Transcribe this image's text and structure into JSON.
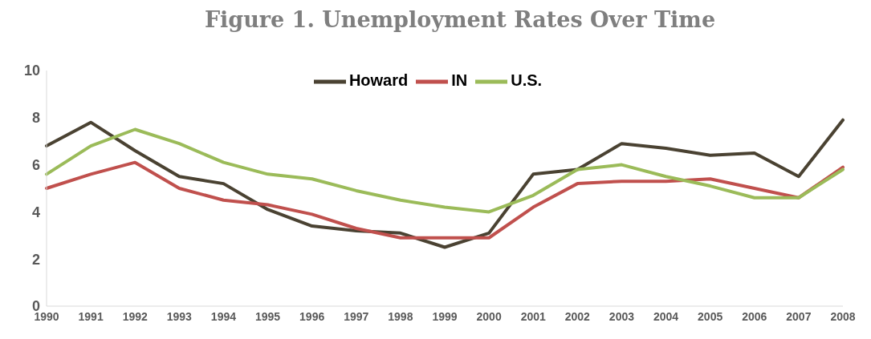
{
  "chart_data": {
    "type": "line",
    "title": "Figure 1. Unemployment Rates Over Time",
    "categories": [
      "1990",
      "1991",
      "1992",
      "1993",
      "1994",
      "1995",
      "1996",
      "1997",
      "1998",
      "1999",
      "2000",
      "2001",
      "2002",
      "2003",
      "2004",
      "2005",
      "2006",
      "2007",
      "2008"
    ],
    "series": [
      {
        "name": "Howard",
        "color": "#4a4232",
        "values": [
          6.8,
          7.8,
          6.6,
          5.5,
          5.2,
          4.1,
          3.4,
          3.2,
          3.1,
          2.5,
          3.1,
          5.6,
          5.8,
          6.9,
          6.7,
          6.4,
          6.5,
          5.5,
          7.9
        ]
      },
      {
        "name": "IN",
        "color": "#c0504d",
        "values": [
          5.0,
          5.6,
          6.1,
          5.0,
          4.5,
          4.3,
          3.9,
          3.3,
          2.9,
          2.9,
          2.9,
          4.2,
          5.2,
          5.3,
          5.3,
          5.4,
          5.0,
          4.6,
          5.9
        ]
      },
      {
        "name": "U.S.",
        "color": "#9bbb59",
        "values": [
          5.6,
          6.8,
          7.5,
          6.9,
          6.1,
          5.6,
          5.4,
          4.9,
          4.5,
          4.2,
          4.0,
          4.7,
          5.8,
          6.0,
          5.5,
          5.1,
          4.6,
          4.6,
          5.8
        ]
      }
    ],
    "ylim": [
      0,
      10
    ],
    "yticks": [
      0,
      2,
      4,
      6,
      8,
      10
    ],
    "grid": false,
    "legend": "top",
    "marker": "none",
    "line_style": "solid"
  }
}
